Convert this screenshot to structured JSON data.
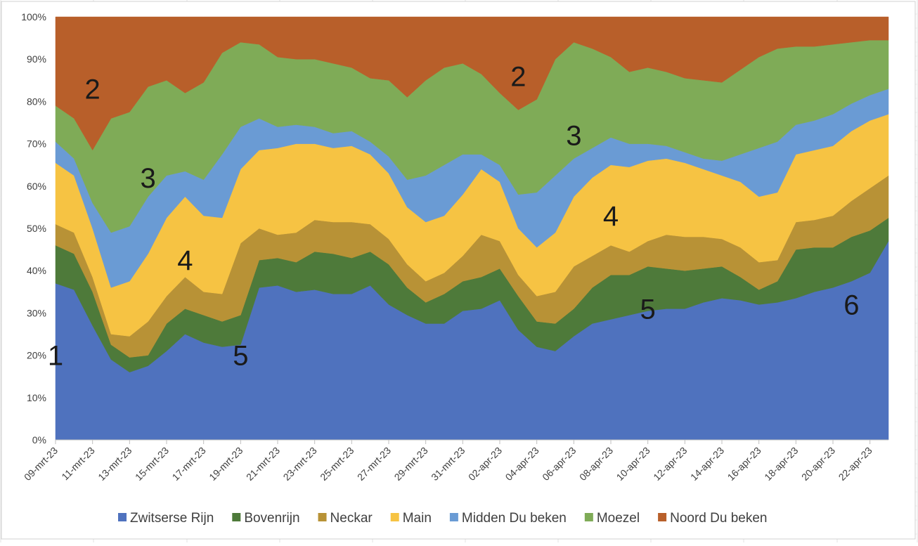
{
  "chart_data": {
    "type": "area",
    "stacked": "percent",
    "ylim": [
      0,
      100
    ],
    "y_ticks": [
      "0%",
      "10%",
      "20%",
      "30%",
      "40%",
      "50%",
      "60%",
      "70%",
      "80%",
      "90%",
      "100%"
    ],
    "x_tick_labels": [
      "09-mrt-23",
      "11-mrt-23",
      "13-mrt-23",
      "15-mrt-23",
      "17-mrt-23",
      "19-mrt-23",
      "21-mrt-23",
      "23-mrt-23",
      "25-mrt-23",
      "27-mrt-23",
      "29-mrt-23",
      "31-mrt-23",
      "02-apr-23",
      "04-apr-23",
      "06-apr-23",
      "08-apr-23",
      "10-apr-23",
      "12-apr-23",
      "14-apr-23",
      "16-apr-23",
      "18-apr-23",
      "20-apr-23",
      "22-apr-23"
    ],
    "x": [
      "09-mrt-23",
      "10-mrt-23",
      "11-mrt-23",
      "12-mrt-23",
      "13-mrt-23",
      "14-mrt-23",
      "15-mrt-23",
      "16-mrt-23",
      "17-mrt-23",
      "18-mrt-23",
      "19-mrt-23",
      "20-mrt-23",
      "21-mrt-23",
      "22-mrt-23",
      "23-mrt-23",
      "24-mrt-23",
      "25-mrt-23",
      "26-mrt-23",
      "27-mrt-23",
      "28-mrt-23",
      "29-mrt-23",
      "30-mrt-23",
      "31-mrt-23",
      "01-apr-23",
      "02-apr-23",
      "03-apr-23",
      "04-apr-23",
      "05-apr-23",
      "06-apr-23",
      "07-apr-23",
      "08-apr-23",
      "09-apr-23",
      "10-apr-23",
      "11-apr-23",
      "12-apr-23",
      "13-apr-23",
      "14-apr-23",
      "15-apr-23",
      "16-apr-23",
      "17-apr-23",
      "18-apr-23",
      "19-apr-23",
      "20-apr-23",
      "21-apr-23",
      "22-apr-23",
      "23-apr-23"
    ],
    "cumulative_top": true,
    "series": [
      {
        "name": "Zwitserse Rijn",
        "color": "#4f72be",
        "values": [
          37,
          35.5,
          27,
          19,
          16,
          17.5,
          21,
          25,
          23,
          22,
          22.5,
          36,
          36.5,
          35,
          35.5,
          34.5,
          34.5,
          36.5,
          32,
          29.5,
          27.5,
          27.5,
          30.5,
          31,
          33,
          26,
          22,
          21,
          24.5,
          27.5,
          28.5,
          29.5,
          30.5,
          31,
          31,
          32.5,
          33.5,
          33,
          32,
          32.5,
          33.5,
          35,
          36,
          37.5,
          39.5,
          47
        ]
      },
      {
        "name": "Bovenrijn",
        "color": "#4e7a3a",
        "values": [
          46,
          44,
          35,
          22.5,
          19.5,
          20,
          27.5,
          31,
          29.5,
          28,
          29.5,
          42.5,
          43,
          42,
          44.5,
          44,
          43,
          44.5,
          41.5,
          36,
          32.5,
          34.5,
          37.5,
          38.5,
          40.5,
          34,
          28,
          27.5,
          31,
          36,
          39,
          39,
          41,
          40.5,
          40,
          40.5,
          41,
          38.5,
          35.5,
          37.5,
          45,
          45.5,
          45.5,
          48,
          49.5,
          52.5
        ]
      },
      {
        "name": "Neckar",
        "color": "#b89236",
        "values": [
          51,
          49,
          38.5,
          25,
          24.5,
          28,
          34,
          38.5,
          35,
          34.5,
          46.5,
          50,
          48.5,
          49,
          52,
          51.5,
          51.5,
          51,
          47.5,
          41.5,
          37.5,
          39.5,
          43.5,
          48.5,
          47,
          39,
          34,
          35,
          41,
          43.5,
          46,
          44.5,
          47,
          48.5,
          48,
          48,
          47.5,
          45.5,
          42,
          42.5,
          51.5,
          52,
          53,
          56.5,
          59.5,
          62.5
        ]
      },
      {
        "name": "Main",
        "color": "#f6c343",
        "values": [
          65.5,
          62.5,
          50,
          36,
          37.5,
          44,
          52.5,
          57.5,
          53,
          52.5,
          64,
          68.5,
          69,
          70,
          70,
          69,
          69.5,
          67.5,
          63,
          55,
          51.5,
          53,
          58,
          64,
          61,
          50,
          45.5,
          49,
          57.5,
          62,
          65,
          64.5,
          66,
          66.5,
          65.5,
          64,
          62.5,
          61,
          57.5,
          58.5,
          67.5,
          68.5,
          69.5,
          73,
          75.5,
          77
        ]
      },
      {
        "name": "Midden Du beken",
        "color": "#6a9bd4",
        "values": [
          70.5,
          66.5,
          56,
          49,
          50.5,
          57.5,
          62.5,
          63.5,
          61.5,
          67.5,
          74,
          76,
          74,
          74.5,
          74,
          72.5,
          73,
          70.5,
          67,
          61.5,
          62.5,
          65,
          67.5,
          67.5,
          65,
          58,
          58.5,
          62.5,
          66.5,
          69,
          71.5,
          70,
          70,
          69.5,
          68,
          66.5,
          66,
          67.5,
          69,
          70.5,
          74.5,
          75.5,
          77,
          79.5,
          81.5,
          83
        ]
      },
      {
        "name": "Moezel",
        "color": "#7fab57",
        "values": [
          79,
          76,
          68.5,
          76,
          77.5,
          83.5,
          85,
          82,
          84.5,
          91.5,
          94,
          93.5,
          90.5,
          90,
          90,
          89,
          88,
          85.5,
          85,
          81,
          85,
          88,
          89,
          86.5,
          82,
          78,
          80.5,
          90,
          94,
          92.5,
          90.5,
          87,
          88,
          87,
          85.5,
          85,
          84.5,
          87.5,
          90.5,
          92.5,
          93,
          93,
          93.5,
          94,
          94.5,
          94.5
        ]
      },
      {
        "name": "Noord Du beken",
        "color": "#b85f2a",
        "values": [
          100,
          100,
          100,
          100,
          100,
          100,
          100,
          100,
          100,
          100,
          100,
          100,
          100,
          100,
          100,
          100,
          100,
          100,
          100,
          100,
          100,
          100,
          100,
          100,
          100,
          100,
          100,
          100,
          100,
          100,
          100,
          100,
          100,
          100,
          100,
          100,
          100,
          100,
          100,
          100,
          100,
          100,
          100,
          100,
          100,
          100
        ]
      }
    ],
    "annotations": [
      {
        "text": "1",
        "x": "09-mrt-23",
        "y": 20
      },
      {
        "text": "2",
        "x": "11-mrt-23",
        "y": 83
      },
      {
        "text": "3",
        "x": "14-mrt-23",
        "y": 62
      },
      {
        "text": "4",
        "x": "16-mrt-23",
        "y": 42.5
      },
      {
        "text": "5",
        "x": "19-mrt-23",
        "y": 20
      },
      {
        "text": "2",
        "x": "03-apr-23",
        "y": 86
      },
      {
        "text": "3",
        "x": "06-apr-23",
        "y": 72
      },
      {
        "text": "4",
        "x": "08-apr-23",
        "y": 53
      },
      {
        "text": "5",
        "x": "10-apr-23",
        "y": 31
      },
      {
        "text": "6",
        "x": "21-apr-23",
        "y": 32
      }
    ],
    "legend_position": "bottom",
    "grid": false
  }
}
